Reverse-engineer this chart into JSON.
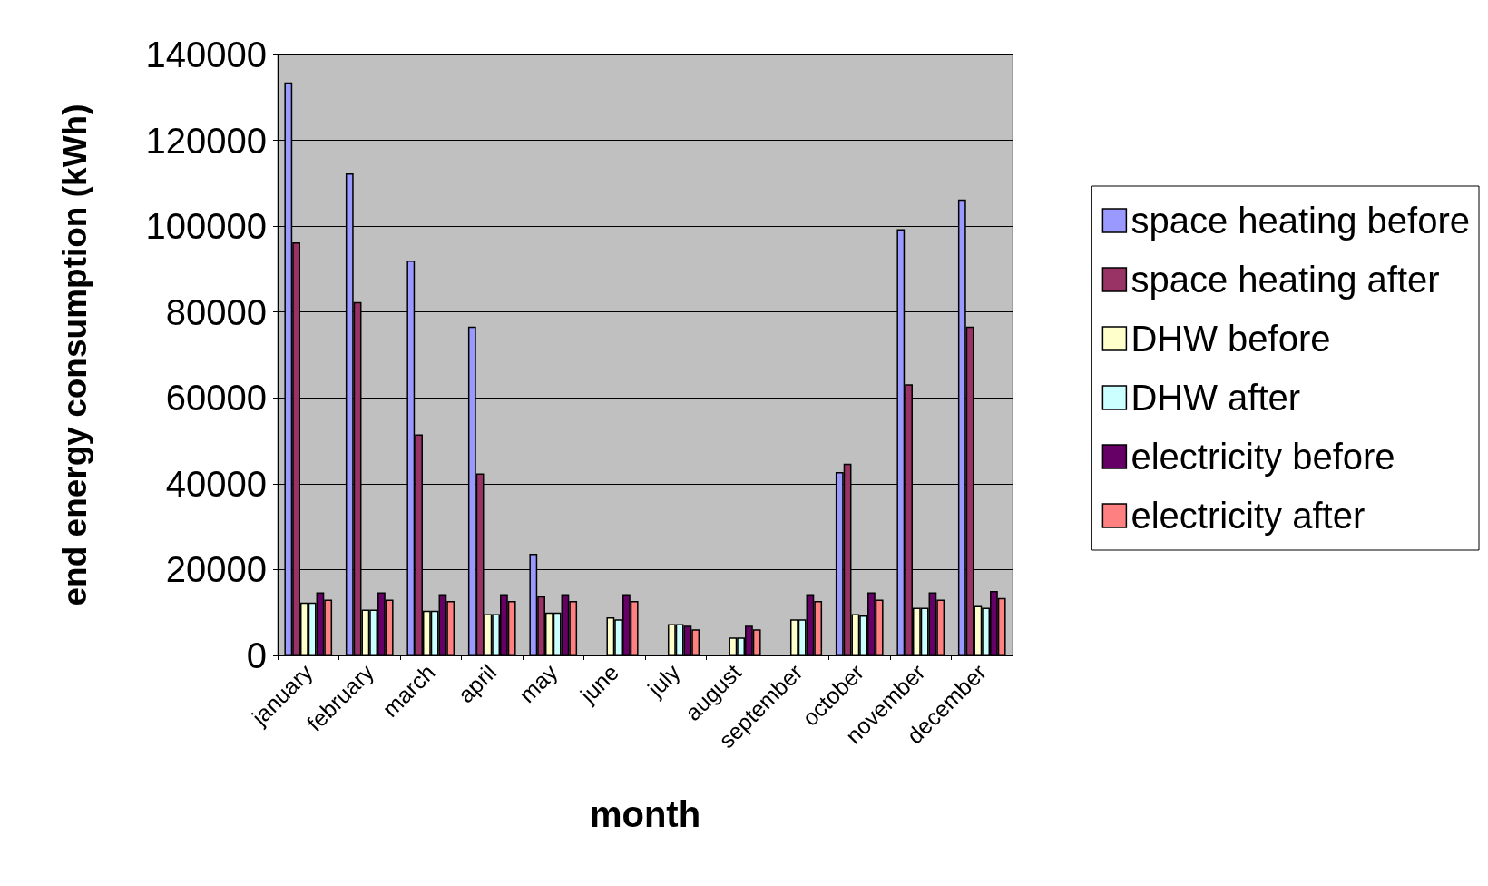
{
  "chart_data": {
    "type": "bar",
    "xlabel": "month",
    "ylabel": "end energy consumption (kWh)",
    "categories": [
      "january",
      "february",
      "march",
      "april",
      "may",
      "june",
      "july",
      "august",
      "september",
      "october",
      "november",
      "december"
    ],
    "series": [
      {
        "name": "space heating before",
        "color": "#9999ff",
        "values": [
          133500,
          112300,
          92000,
          76600,
          23700,
          null,
          null,
          null,
          null,
          42700,
          99300,
          106200
        ]
      },
      {
        "name": "space heating after",
        "color": "#993366",
        "values": [
          96200,
          82300,
          51500,
          42400,
          13800,
          null,
          null,
          null,
          null,
          44700,
          63200,
          76600
        ]
      },
      {
        "name": "DHW before",
        "color": "#ffffcc",
        "values": [
          12300,
          10700,
          10400,
          9600,
          10000,
          8900,
          7300,
          4200,
          8400,
          9600,
          11100,
          11500
        ]
      },
      {
        "name": "DHW after",
        "color": "#ccffff",
        "values": [
          12300,
          10700,
          10400,
          9600,
          10000,
          8400,
          7300,
          4200,
          8400,
          9300,
          11100,
          11100
        ]
      },
      {
        "name": "electricity before",
        "color": "#660066",
        "values": [
          14700,
          14700,
          14300,
          14300,
          14300,
          14300,
          6900,
          6900,
          14300,
          14700,
          14700,
          15000
        ]
      },
      {
        "name": "electricity after",
        "color": "#ff8080",
        "values": [
          13000,
          13000,
          12700,
          12700,
          12700,
          12700,
          6100,
          6100,
          12700,
          13000,
          13000,
          13400
        ]
      }
    ],
    "ylim": [
      0,
      140000
    ],
    "yticks": [
      0,
      20000,
      40000,
      60000,
      80000,
      100000,
      120000,
      140000
    ],
    "grid": "y",
    "legend": "right"
  }
}
